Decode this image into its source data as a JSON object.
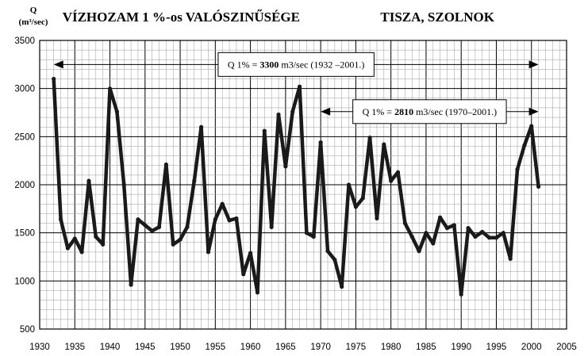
{
  "chart_data": {
    "type": "line",
    "title": "VÍZHOZAM 1 %-os VALÓSZINŰSÉGE",
    "subtitle": "TISZA, SZOLNOK",
    "ylabel_main": "Q",
    "ylabel_unit": "(m³/sec)",
    "xlabel": "",
    "xlim": [
      1930,
      2005
    ],
    "ylim": [
      500,
      3500
    ],
    "xticks": [
      1930,
      1935,
      1940,
      1945,
      1950,
      1955,
      1960,
      1965,
      1970,
      1975,
      1980,
      1985,
      1990,
      1995,
      2000,
      2005
    ],
    "yticks": [
      500,
      1000,
      1500,
      2000,
      2500,
      3000,
      3500
    ],
    "grid": true,
    "series": [
      {
        "color": "#1a1a1a",
        "x": [
          1932,
          1933,
          1934,
          1935,
          1936,
          1937,
          1938,
          1939,
          1940,
          1941,
          1942,
          1943,
          1944,
          1945,
          1946,
          1947,
          1948,
          1949,
          1950,
          1951,
          1952,
          1953,
          1954,
          1955,
          1956,
          1957,
          1958,
          1959,
          1960,
          1961,
          1962,
          1963,
          1964,
          1965,
          1966,
          1967,
          1968,
          1969,
          1970,
          1971,
          1972,
          1973,
          1974,
          1975,
          1976,
          1977,
          1978,
          1979,
          1980,
          1981,
          1982,
          1983,
          1984,
          1985,
          1986,
          1987,
          1988,
          1989,
          1990,
          1991,
          1992,
          1993,
          1994,
          1995,
          1996,
          1997,
          1998,
          1999,
          2000,
          2001
        ],
        "y": [
          3100,
          1640,
          1340,
          1440,
          1300,
          2040,
          1460,
          1380,
          3000,
          2760,
          2000,
          960,
          1640,
          1580,
          1520,
          1560,
          2210,
          1380,
          1430,
          1560,
          2040,
          2600,
          1300,
          1640,
          1800,
          1630,
          1650,
          1070,
          1290,
          880,
          2560,
          1560,
          2730,
          2190,
          2760,
          3020,
          1500,
          1460,
          2440,
          1310,
          1220,
          940,
          2000,
          1770,
          1860,
          2490,
          1650,
          2420,
          2040,
          2130,
          1600,
          1460,
          1310,
          1500,
          1390,
          1660,
          1550,
          1580,
          860,
          1550,
          1460,
          1510,
          1450,
          1450,
          1500,
          1230,
          2160,
          2410,
          2610,
          1980
        ]
      }
    ],
    "annotations": [
      {
        "prefix": "Q 1% = ",
        "value": "3300",
        "suffix": " m3/sec (1932 –2001.)",
        "x_from": 1932,
        "x_to": 2001,
        "y": 3250
      },
      {
        "prefix": "Q 1% = ",
        "value": "2810",
        "suffix": " m3/sec (1970–2001.)",
        "x_from": 1970,
        "x_to": 2001,
        "y": 2760
      }
    ]
  }
}
